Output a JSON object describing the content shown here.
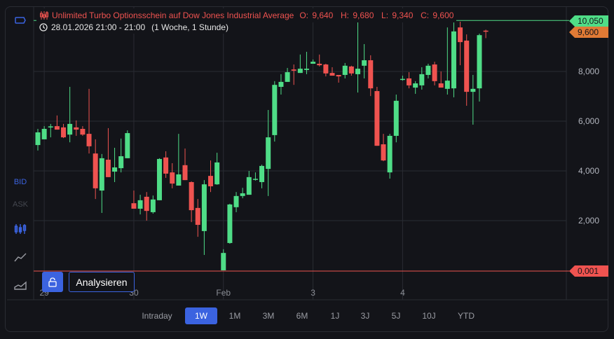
{
  "legend": {
    "title": "Unlimited Turbo Optionsschein auf Dow Jones Industrial Average",
    "ohlc": "O: 9,640  H: 9,680  L: 9,340  C: 9,600",
    "datetime": "28.01.2026 21:00 - 21:00",
    "interval": "(1 Woche, 1 Stunde)"
  },
  "toolbar": {
    "bid": "BID",
    "ask": "ASK"
  },
  "price_badges": {
    "high": "10,050",
    "last": "9,600",
    "low": "0,001"
  },
  "buttons": {
    "analyze": "Analysieren"
  },
  "ranges": [
    "Intraday",
    "1W",
    "1M",
    "3M",
    "6M",
    "1J",
    "3J",
    "5J",
    "10J",
    "YTD"
  ],
  "active_range": "1W",
  "colors": {
    "up": "#4fdd87",
    "down": "#ef5350",
    "last": "#e07a35",
    "accent": "#3b63e0"
  },
  "chart_data": {
    "type": "candlestick",
    "yticks": [
      "2,000",
      "4,000",
      "6,000",
      "8,000"
    ],
    "ytick_values": [
      2,
      4,
      6,
      8
    ],
    "xticks": [
      {
        "label": "29",
        "index": 1
      },
      {
        "label": "30",
        "index": 15
      },
      {
        "label": "Feb",
        "index": 29
      },
      {
        "label": "3",
        "index": 43
      },
      {
        "label": "4",
        "index": 57
      }
    ],
    "ylim": [
      0,
      10.05
    ],
    "high_line": 10.05,
    "low_line": 0.001,
    "last": 9.6,
    "candles": [
      [
        5.04,
        5.69,
        4.82,
        5.55
      ],
      [
        5.27,
        5.8,
        5.27,
        5.69
      ],
      [
        5.77,
        5.89,
        5.35,
        5.79
      ],
      [
        5.8,
        6.23,
        5.66,
        5.66
      ],
      [
        5.75,
        5.89,
        5.32,
        5.35
      ],
      [
        5.46,
        7.38,
        5.15,
        5.89
      ],
      [
        5.75,
        6.03,
        5.41,
        5.66
      ],
      [
        5.69,
        5.8,
        5.41,
        5.46
      ],
      [
        5.49,
        7.3,
        4.7,
        4.99
      ],
      [
        4.7,
        5.27,
        2.87,
        3.3
      ],
      [
        3.21,
        4.68,
        2.31,
        4.51
      ],
      [
        4.45,
        5.72,
        3.75,
        3.75
      ],
      [
        3.97,
        4.93,
        3.55,
        4.14
      ],
      [
        4.11,
        5.3,
        3.94,
        4.59
      ],
      [
        4.51,
        5.63,
        4.51,
        5.52
      ],
      [
        2.7,
        3.21,
        2.48,
        2.48
      ],
      [
        2.48,
        3.04,
        2.25,
        2.82
      ],
      [
        2.96,
        3.15,
        2.0,
        2.39
      ],
      [
        2.34,
        3.01,
        2.28,
        2.85
      ],
      [
        2.82,
        4.51,
        2.82,
        4.48
      ],
      [
        4.54,
        4.79,
        3.72,
        3.89
      ],
      [
        3.94,
        4.31,
        3.3,
        3.49
      ],
      [
        3.41,
        5.49,
        3.41,
        3.86
      ],
      [
        4.23,
        4.9,
        3.63,
        3.63
      ],
      [
        3.55,
        3.58,
        1.94,
        2.42
      ],
      [
        2.51,
        2.87,
        1.35,
        1.83
      ],
      [
        1.58,
        3.63,
        0.62,
        3.46
      ],
      [
        3.8,
        4.42,
        3.15,
        3.38
      ],
      [
        3.46,
        4.73,
        3.44,
        4.34
      ],
      [
        0.001,
        0.85,
        0.001,
        0.7
      ],
      [
        1.1,
        2.68,
        1.07,
        2.65
      ],
      [
        2.54,
        3.15,
        2.34,
        2.99
      ],
      [
        2.99,
        3.32,
        2.9,
        3.1
      ],
      [
        3.04,
        4.0,
        3.04,
        3.75
      ],
      [
        3.66,
        3.94,
        3.61,
        3.68
      ],
      [
        3.55,
        4.25,
        3.3,
        4.2
      ],
      [
        4.08,
        6.45,
        2.99,
        5.35
      ],
      [
        5.44,
        7.61,
        5.18,
        7.46
      ],
      [
        7.38,
        7.89,
        7.07,
        7.58
      ],
      [
        7.58,
        8.14,
        7.58,
        7.97
      ],
      [
        8.08,
        8.28,
        7.46,
        8.03
      ],
      [
        7.94,
        8.68,
        7.94,
        8.11
      ],
      [
        8.06,
        8.79,
        7.89,
        8.11
      ],
      [
        8.31,
        8.48,
        8.31,
        8.39
      ],
      [
        8.31,
        8.68,
        8.2,
        8.25
      ],
      [
        8.28,
        8.31,
        7.8,
        7.92
      ],
      [
        7.94,
        8.17,
        7.83,
        7.83
      ],
      [
        7.86,
        7.86,
        7.55,
        7.8
      ],
      [
        7.86,
        8.34,
        7.72,
        8.23
      ],
      [
        8.2,
        8.23,
        7.83,
        7.92
      ],
      [
        7.89,
        10.0,
        7.15,
        8.11
      ],
      [
        8.23,
        9.1,
        7.72,
        8.45
      ],
      [
        8.45,
        8.65,
        7.01,
        7.32
      ],
      [
        7.21,
        7.38,
        5.01,
        5.01
      ],
      [
        5.07,
        5.49,
        4.39,
        4.42
      ],
      [
        3.94,
        5.49,
        3.69,
        5.41
      ],
      [
        5.41,
        7.07,
        5.15,
        6.82
      ],
      [
        7.69,
        7.83,
        7.63,
        7.7
      ],
      [
        7.72,
        7.97,
        7.32,
        7.44
      ],
      [
        7.35,
        7.61,
        7.1,
        7.52
      ],
      [
        7.44,
        8.17,
        7.27,
        7.89
      ],
      [
        7.86,
        8.31,
        7.72,
        8.23
      ],
      [
        8.28,
        8.39,
        7.44,
        7.61
      ],
      [
        7.52,
        8.0,
        7.35,
        7.35
      ],
      [
        7.3,
        9.77,
        7.07,
        7.63
      ],
      [
        7.32,
        9.97,
        6.96,
        9.61
      ],
      [
        9.77,
        10.0,
        8.25,
        9.18
      ],
      [
        9.24,
        9.49,
        6.62,
        7.18
      ],
      [
        7.18,
        7.86,
        5.86,
        7.3
      ],
      [
        7.32,
        9.52,
        6.79,
        9.46
      ],
      [
        9.64,
        9.68,
        9.34,
        9.6
      ]
    ]
  }
}
